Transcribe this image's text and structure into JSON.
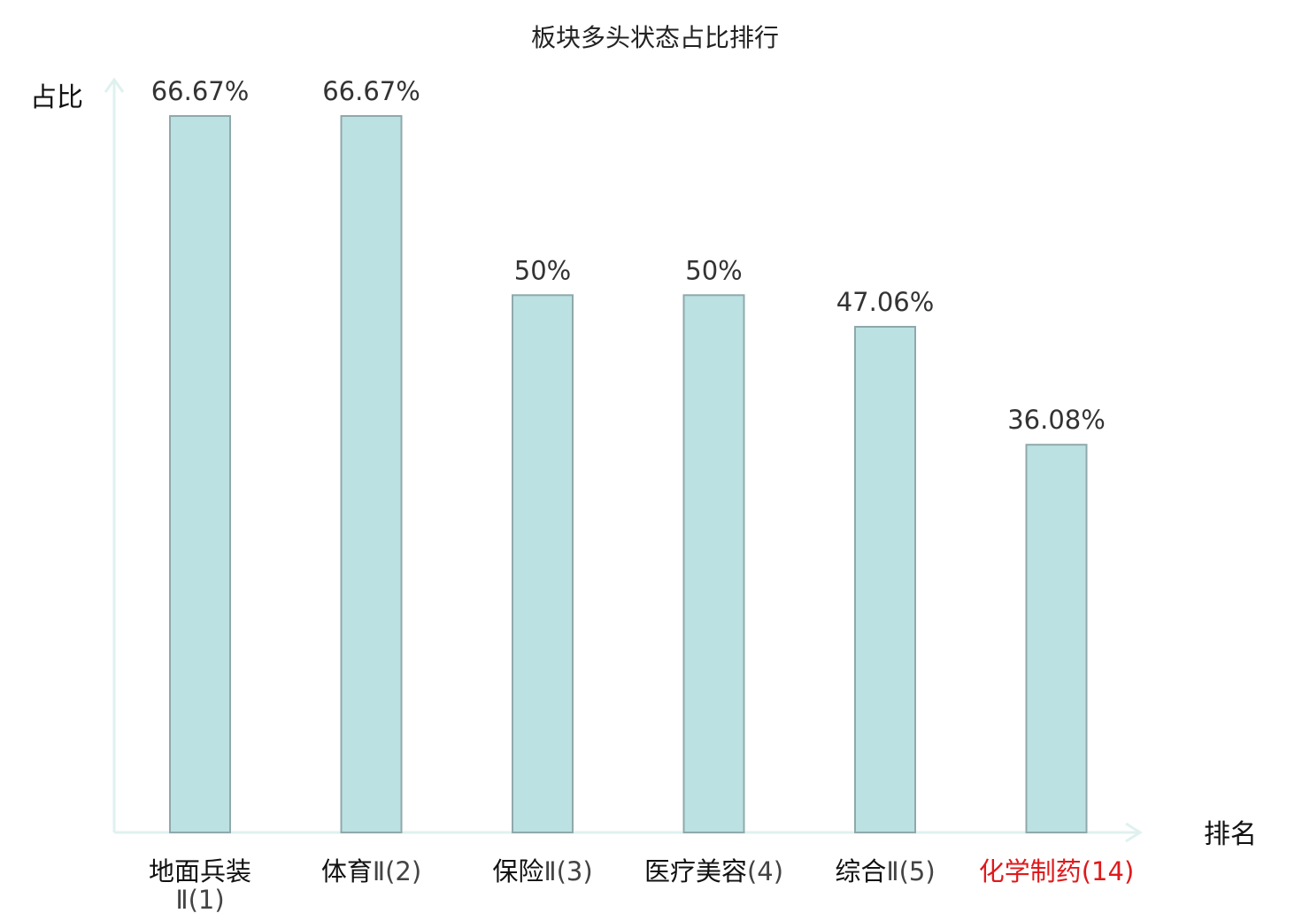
{
  "chart_data": {
    "type": "bar",
    "title": "板块多头状态占比排行",
    "ylabel": "占比",
    "xlabel": "排名",
    "ylim": [
      0,
      70
    ],
    "grid": false,
    "categories": [
      {
        "name": "地面兵装",
        "rank": "Ⅱ(1)",
        "highlight": false
      },
      {
        "name": "体育",
        "rank": "Ⅱ(2)",
        "highlight": false
      },
      {
        "name": "保险",
        "rank": "Ⅱ(3)",
        "highlight": false
      },
      {
        "name": "医疗美容",
        "rank": "(4)",
        "highlight": false
      },
      {
        "name": "综合",
        "rank": "Ⅱ(5)",
        "highlight": false
      },
      {
        "name": "化学制药",
        "rank": "(14)",
        "highlight": true
      }
    ],
    "values": [
      66.67,
      66.67,
      50,
      50,
      47.06,
      36.08
    ],
    "value_labels": [
      "66.67%",
      "66.67%",
      "50%",
      "50%",
      "47.06%",
      "36.08%"
    ],
    "colors": {
      "bar_fill": "#bce1e3",
      "bar_stroke": "#8fa9ab",
      "axis": "#dff1ef",
      "label_normal": "#111111",
      "rank_normal": "#444444",
      "label_highlight": "#e0191b"
    }
  }
}
